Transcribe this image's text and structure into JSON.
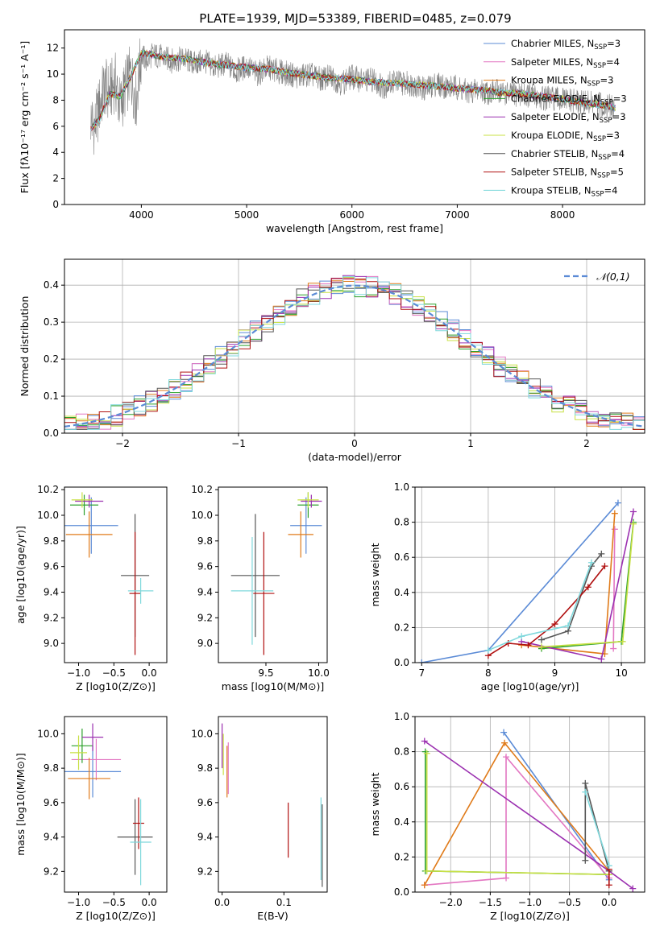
{
  "figure_title": "PLATE=1939, MJD=53389, FIBERID=0485, z=0.079",
  "palette": [
    "#5b8bd6",
    "#e377c2",
    "#e07b1a",
    "#2ca02c",
    "#9b30b0",
    "#c8e045",
    "#555555",
    "#b01010",
    "#7fd8dc"
  ],
  "chart_data": [
    {
      "id": "spectrum",
      "type": "line",
      "title": "PLATE=1939, MJD=53389, FIBERID=0485, z=0.079",
      "xlabel": "wavelength [Angstrom, rest frame]",
      "ylabel": "Flux [fλ10⁻¹⁷ erg cm⁻² s⁻¹ A⁻¹]",
      "xlim": [
        3270,
        8780
      ],
      "ylim": [
        0,
        13.4
      ],
      "xticks": [
        4000,
        5000,
        6000,
        7000,
        8000
      ],
      "yticks": [
        0,
        2,
        4,
        6,
        8,
        10,
        12
      ],
      "grid": false,
      "legend_placement": "top-right",
      "legend": [
        {
          "label": "Chabrier MILES, N",
          "sub": "SSP",
          "suffix": "=3",
          "color": "#5b8bd6"
        },
        {
          "label": "Salpeter MILES, N",
          "sub": "SSP",
          "suffix": "=4",
          "color": "#e377c2"
        },
        {
          "label": "Kroupa MILES, N",
          "sub": "SSP",
          "suffix": "=3",
          "color": "#e07b1a"
        },
        {
          "label": "Chabrier ELODIE, N",
          "sub": "SSP",
          "suffix": "=3",
          "color": "#2ca02c"
        },
        {
          "label": "Salpeter ELODIE, N",
          "sub": "SSP",
          "suffix": "=3",
          "color": "#9b30b0"
        },
        {
          "label": "Kroupa ELODIE, N",
          "sub": "SSP",
          "suffix": "=3",
          "color": "#c8e045"
        },
        {
          "label": "Chabrier STELIB, N",
          "sub": "SSP",
          "suffix": "=4",
          "color": "#555555"
        },
        {
          "label": "Salpeter STELIB, N",
          "sub": "SSP",
          "suffix": "=5",
          "color": "#b01010"
        },
        {
          "label": "Kroupa STELIB, N",
          "sub": "SSP",
          "suffix": "=4",
          "color": "#7fd8dc"
        }
      ],
      "observed": {
        "color": "#808080",
        "x": [
          3520,
          3560,
          3600,
          3650,
          3700,
          3750,
          3800,
          3850,
          3900,
          3950,
          4000,
          4050,
          4100,
          4200,
          4300,
          4400,
          4500,
          4600,
          4700,
          4800,
          4900,
          5000,
          5100,
          5200,
          5300,
          5400,
          5500,
          5600,
          5700,
          5800,
          5900,
          6000,
          6100,
          6200,
          6300,
          6400,
          6500,
          6600,
          6700,
          6800,
          6900,
          7000,
          7100,
          7200,
          7300,
          7400,
          7500,
          7600,
          7800,
          8000,
          8200,
          8400,
          8500
        ],
        "y": [
          6.5,
          6.0,
          7.5,
          9.0,
          8.5,
          9.5,
          7.5,
          9.0,
          10.0,
          8.0,
          11.5,
          11.0,
          11.5,
          11.3,
          11.0,
          11.2,
          10.8,
          11.0,
          10.5,
          10.8,
          10.2,
          10.6,
          10.0,
          10.5,
          10.2,
          10.0,
          9.8,
          10.0,
          9.6,
          9.8,
          9.3,
          9.8,
          9.5,
          9.6,
          9.0,
          9.5,
          9.3,
          9.2,
          8.8,
          9.3,
          9.0,
          9.0,
          8.6,
          8.8,
          8.6,
          8.7,
          8.4,
          8.5,
          8.2,
          8.0,
          7.8,
          7.6,
          7.4
        ]
      },
      "model": {
        "x": [
          3520,
          3600,
          3700,
          3800,
          3900,
          4000,
          4100,
          4200,
          4400,
          4600,
          4800,
          5000,
          5200,
          5400,
          5600,
          5800,
          6000,
          6200,
          6400,
          6600,
          6800,
          7000,
          7200,
          7400,
          7600,
          7800,
          8000,
          8200,
          8400,
          8500
        ],
        "y": [
          5.8,
          6.5,
          8.5,
          8.3,
          9.8,
          11.6,
          11.5,
          11.3,
          11.2,
          10.9,
          10.7,
          10.5,
          10.4,
          10.1,
          9.9,
          9.7,
          9.6,
          9.4,
          9.3,
          9.2,
          9.1,
          8.9,
          8.8,
          8.6,
          8.5,
          8.3,
          8.1,
          7.8,
          7.6,
          7.4
        ]
      }
    },
    {
      "id": "residual-histogram",
      "type": "step",
      "xlabel": "(data-model)/error",
      "ylabel": "Normed distribution",
      "xlim": [
        -2.5,
        2.5
      ],
      "ylim": [
        0,
        0.47
      ],
      "xticks": [
        -2,
        -1,
        0,
        1,
        2
      ],
      "yticks": [
        0.0,
        0.1,
        0.2,
        0.3,
        0.4
      ],
      "grid": true,
      "legend_placement": "top-right",
      "legend": [
        {
          "label": "𝒩(0,1)",
          "color": "#5b8bd6",
          "dashed": true
        }
      ],
      "bin_width": 0.1,
      "bins_start": -2.5,
      "normal_curve": {
        "mean": 0,
        "sigma": 1
      }
    },
    {
      "id": "age-vs-Z",
      "type": "scatter",
      "xlabel": "Z [log10(Z/Z⊙)]",
      "ylabel": "age [log10(age/yr)]",
      "xlim": [
        -1.2,
        0.25
      ],
      "ylim": [
        8.85,
        10.22
      ],
      "xticks": [
        -1.0,
        -0.5,
        0.0
      ],
      "yticks": [
        9.0,
        9.2,
        9.4,
        9.6,
        9.8,
        10.0,
        10.2
      ],
      "grid": false,
      "points": [
        {
          "x": -0.82,
          "y": 9.92,
          "xerr": 0.38,
          "yerr": 0.22,
          "color": "#5b8bd6"
        },
        {
          "x": -0.85,
          "y": 9.85,
          "xerr": 0.33,
          "yerr": 0.18,
          "color": "#e07b1a"
        },
        {
          "x": -0.92,
          "y": 10.08,
          "xerr": 0.2,
          "yerr": 0.08,
          "color": "#2ca02c"
        },
        {
          "x": -0.85,
          "y": 10.11,
          "xerr": 0.2,
          "yerr": 0.05,
          "color": "#9b30b0"
        },
        {
          "x": -0.95,
          "y": 10.12,
          "xerr": 0.15,
          "yerr": 0.06,
          "color": "#c8e045"
        },
        {
          "x": -0.2,
          "y": 9.53,
          "xerr": 0.2,
          "yerr": 0.48,
          "color": "#555555"
        },
        {
          "x": -0.2,
          "y": 9.39,
          "xerr": 0.08,
          "yerr": 0.48,
          "color": "#b01010"
        },
        {
          "x": -0.12,
          "y": 9.41,
          "xerr": 0.18,
          "yerr": 0.1,
          "color": "#7fd8dc"
        }
      ]
    },
    {
      "id": "age-vs-mass",
      "type": "scatter",
      "xlabel": "mass [log10(M/M⊙)]",
      "ylabel": "",
      "xlim": [
        9.05,
        10.08
      ],
      "ylim": [
        8.85,
        10.22
      ],
      "xticks": [
        9.5,
        10.0
      ],
      "yticks": [
        9.0,
        9.2,
        9.4,
        9.6,
        9.8,
        10.0,
        10.2
      ],
      "grid": false,
      "points": [
        {
          "x": 9.88,
          "y": 9.92,
          "xerr": 0.15,
          "yerr": 0.22,
          "color": "#5b8bd6"
        },
        {
          "x": 9.83,
          "y": 9.85,
          "xerr": 0.12,
          "yerr": 0.18,
          "color": "#e07b1a"
        },
        {
          "x": 9.9,
          "y": 10.08,
          "xerr": 0.1,
          "yerr": 0.1,
          "color": "#2ca02c"
        },
        {
          "x": 9.93,
          "y": 10.11,
          "xerr": 0.1,
          "yerr": 0.05,
          "color": "#9b30b0"
        },
        {
          "x": 9.9,
          "y": 10.12,
          "xerr": 0.1,
          "yerr": 0.06,
          "color": "#c8e045"
        },
        {
          "x": 9.4,
          "y": 9.53,
          "xerr": 0.23,
          "yerr": 0.48,
          "color": "#555555"
        },
        {
          "x": 9.48,
          "y": 9.39,
          "xerr": 0.1,
          "yerr": 0.48,
          "color": "#b01010"
        },
        {
          "x": 9.37,
          "y": 9.41,
          "xerr": 0.2,
          "yerr": 0.42,
          "color": "#7fd8dc"
        }
      ]
    },
    {
      "id": "mass-weight-vs-age",
      "type": "line",
      "xlabel": "age [log10(age/yr)]",
      "ylabel": "mass weight",
      "xlim": [
        6.9,
        10.35
      ],
      "ylim": [
        0,
        1.0
      ],
      "xticks": [
        7,
        8,
        9,
        10
      ],
      "yticks": [
        0.0,
        0.2,
        0.4,
        0.6,
        0.8,
        1.0
      ],
      "grid": true,
      "series": [
        {
          "color": "#5b8bd6",
          "x": [
            7.0,
            8.0,
            9.95
          ],
          "y": [
            0.0,
            0.07,
            0.91
          ]
        },
        {
          "color": "#e377c2",
          "x": [
            9.88,
            9.9
          ],
          "y": [
            0.08,
            0.76
          ]
        },
        {
          "color": "#e07b1a",
          "x": [
            8.5,
            9.75,
            9.9
          ],
          "y": [
            0.1,
            0.05,
            0.85
          ]
        },
        {
          "color": "#2ca02c",
          "x": [
            8.8,
            10.0,
            10.18
          ],
          "y": [
            0.08,
            0.12,
            0.8
          ]
        },
        {
          "color": "#9b30b0",
          "x": [
            8.5,
            9.7,
            10.18
          ],
          "y": [
            0.12,
            0.02,
            0.86
          ]
        },
        {
          "color": "#c8e045",
          "x": [
            8.8,
            10.02,
            10.18
          ],
          "y": [
            0.09,
            0.12,
            0.79
          ]
        },
        {
          "color": "#555555",
          "x": [
            8.8,
            9.2,
            9.55,
            9.7
          ],
          "y": [
            0.13,
            0.18,
            0.55,
            0.62
          ]
        },
        {
          "color": "#b01010",
          "x": [
            8.0,
            8.3,
            8.6,
            9.0,
            9.5,
            9.75
          ],
          "y": [
            0.04,
            0.11,
            0.1,
            0.22,
            0.43,
            0.55
          ]
        },
        {
          "color": "#7fd8dc",
          "x": [
            8.0,
            8.5,
            9.2,
            9.55
          ],
          "y": [
            0.07,
            0.15,
            0.21,
            0.57
          ]
        }
      ]
    },
    {
      "id": "mass-vs-Z",
      "type": "scatter",
      "xlabel": "Z [log10(Z/Z⊙)]",
      "ylabel": "mass [log10(M/M⊙)]",
      "xlim": [
        -1.2,
        0.25
      ],
      "ylim": [
        9.08,
        10.1
      ],
      "xticks": [
        -1.0,
        -0.5,
        0.0
      ],
      "yticks": [
        9.2,
        9.4,
        9.6,
        9.8,
        10.0
      ],
      "grid": false,
      "points": [
        {
          "x": -0.8,
          "y": 9.78,
          "xerr": 0.4,
          "yerr": 0.15,
          "color": "#5b8bd6"
        },
        {
          "x": -0.75,
          "y": 9.85,
          "xerr": 0.35,
          "yerr": 0.12,
          "color": "#e377c2"
        },
        {
          "x": -0.85,
          "y": 9.74,
          "xerr": 0.3,
          "yerr": 0.12,
          "color": "#e07b1a"
        },
        {
          "x": -0.95,
          "y": 9.93,
          "xerr": 0.15,
          "yerr": 0.1,
          "color": "#2ca02c"
        },
        {
          "x": -0.8,
          "y": 9.98,
          "xerr": 0.15,
          "yerr": 0.08,
          "color": "#9b30b0"
        },
        {
          "x": -1.0,
          "y": 9.89,
          "xerr": 0.12,
          "yerr": 0.1,
          "color": "#c8e045"
        },
        {
          "x": -0.2,
          "y": 9.4,
          "xerr": 0.25,
          "yerr": 0.22,
          "color": "#555555"
        },
        {
          "x": -0.15,
          "y": 9.48,
          "xerr": 0.08,
          "yerr": 0.15,
          "color": "#b01010"
        },
        {
          "x": -0.12,
          "y": 9.37,
          "xerr": 0.15,
          "yerr": 0.25,
          "color": "#7fd8dc"
        }
      ]
    },
    {
      "id": "mass-vs-EBV",
      "type": "scatter",
      "xlabel": "E(B-V)",
      "ylabel": "",
      "xlim": [
        -0.006,
        0.17
      ],
      "ylim": [
        9.08,
        10.1
      ],
      "xticks": [
        0.0,
        0.1
      ],
      "yticks": [
        9.2,
        9.4,
        9.6,
        9.8,
        10.0
      ],
      "grid": false,
      "points": [
        {
          "x": 0.0,
          "y": 9.93,
          "xerr": 0,
          "yerr": 0.13,
          "color": "#9b30b0"
        },
        {
          "x": 0.002,
          "y": 9.88,
          "xerr": 0,
          "yerr": 0.12,
          "color": "#c8e045"
        },
        {
          "x": 0.008,
          "y": 9.78,
          "xerr": 0,
          "yerr": 0.15,
          "color": "#e07b1a"
        },
        {
          "x": 0.01,
          "y": 9.8,
          "xerr": 0,
          "yerr": 0.15,
          "color": "#e377c2"
        },
        {
          "x": 0.107,
          "y": 9.44,
          "xerr": 0,
          "yerr": 0.16,
          "color": "#b01010"
        },
        {
          "x": 0.16,
          "y": 9.39,
          "xerr": 0,
          "yerr": 0.24,
          "color": "#7fd8dc"
        },
        {
          "x": 0.162,
          "y": 9.35,
          "xerr": 0,
          "yerr": 0.24,
          "color": "#555555"
        }
      ]
    },
    {
      "id": "mass-weight-vs-Z",
      "type": "line",
      "xlabel": "Z [log10(Z/Z⊙)]",
      "ylabel": "mass weight",
      "xlim": [
        -2.45,
        0.45
      ],
      "ylim": [
        0,
        1.0
      ],
      "xticks": [
        -2.0,
        -1.5,
        -1.0,
        -0.5,
        0.0
      ],
      "yticks": [
        0.0,
        0.2,
        0.4,
        0.6,
        0.8,
        1.0
      ],
      "grid": true,
      "series": [
        {
          "color": "#5b8bd6",
          "x": [
            -1.33,
            0.0
          ],
          "y": [
            0.91,
            0.07
          ]
        },
        {
          "color": "#e377c2",
          "x": [
            -2.33,
            -1.3,
            -1.3,
            0.0
          ],
          "y": [
            0.04,
            0.08,
            0.77,
            0.08
          ]
        },
        {
          "color": "#e07b1a",
          "x": [
            -2.33,
            -1.32,
            0.0
          ],
          "y": [
            0.04,
            0.85,
            0.12
          ]
        },
        {
          "color": "#2ca02c",
          "x": [
            -2.32,
            -2.32,
            0.0
          ],
          "y": [
            0.8,
            0.12,
            0.1
          ]
        },
        {
          "color": "#9b30b0",
          "x": [
            -2.33,
            0.0,
            0.3
          ],
          "y": [
            0.86,
            0.12,
            0.02
          ]
        },
        {
          "color": "#c8e045",
          "x": [
            -2.3,
            -2.3,
            0.0
          ],
          "y": [
            0.79,
            0.12,
            0.1
          ]
        },
        {
          "color": "#555555",
          "x": [
            -0.3,
            -0.3,
            0.0
          ],
          "y": [
            0.18,
            0.62,
            0.12
          ]
        },
        {
          "color": "#b01010",
          "x": [
            0.0,
            0.0
          ],
          "y": [
            0.04,
            0.13
          ]
        },
        {
          "color": "#7fd8dc",
          "x": [
            -0.3,
            0.0
          ],
          "y": [
            0.57,
            0.15
          ]
        }
      ]
    }
  ]
}
